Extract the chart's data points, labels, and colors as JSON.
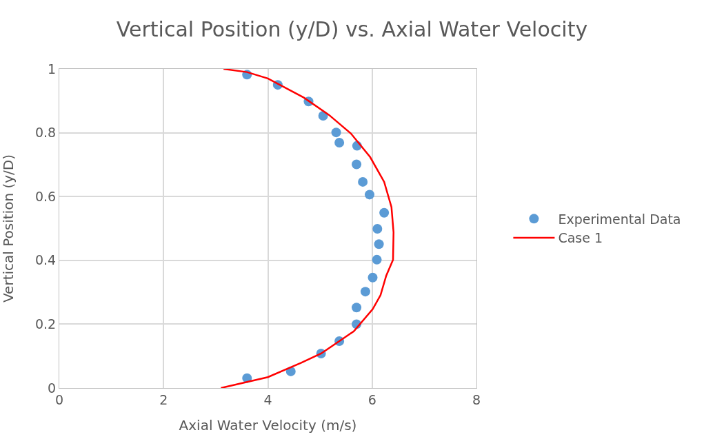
{
  "chart_data": {
    "type": "scatter",
    "title": "Vertical Position (y/D) vs. Axial Water Velocity",
    "xlabel": "Axial Water Velocity (m/s)",
    "ylabel": "Vertical Position (y/D)",
    "xlim": [
      0,
      8
    ],
    "xticks": [
      0,
      2,
      4,
      6,
      8
    ],
    "ylim": [
      0,
      1
    ],
    "yticks": [
      0,
      0.2,
      0.4,
      0.6,
      0.8,
      1
    ],
    "grid": true,
    "legend": "right",
    "series": [
      {
        "name": "Experimental Data",
        "marker": "circle",
        "color": "#5b9bd5",
        "x": [
          3.6,
          4.19,
          4.78,
          5.06,
          5.31,
          5.37,
          5.71,
          5.7,
          5.82,
          5.95,
          6.23,
          6.1,
          6.13,
          6.09,
          6.01,
          5.87,
          5.7,
          5.7,
          5.37,
          5.02,
          4.44,
          3.6
        ],
        "values": [
          0.982,
          0.95,
          0.898,
          0.853,
          0.801,
          0.769,
          0.759,
          0.701,
          0.646,
          0.606,
          0.549,
          0.499,
          0.451,
          0.402,
          0.346,
          0.302,
          0.252,
          0.2,
          0.147,
          0.108,
          0.052,
          0.031
        ]
      },
      {
        "name": "Case 1",
        "type": "line",
        "marker": "none",
        "line_style": "solid",
        "color": "#ff0000",
        "x": [
          3.15,
          3.6,
          4.0,
          4.69,
          5.17,
          5.59,
          5.96,
          6.23,
          6.37,
          6.41,
          6.4,
          6.27,
          6.16,
          6.01,
          5.65,
          5.37,
          5.02,
          4.64,
          4.0,
          3.1
        ],
        "values": [
          1.0,
          0.99,
          0.97,
          0.91,
          0.856,
          0.798,
          0.724,
          0.646,
          0.567,
          0.488,
          0.402,
          0.352,
          0.291,
          0.247,
          0.178,
          0.147,
          0.108,
          0.079,
          0.034,
          0.0
        ]
      }
    ]
  }
}
